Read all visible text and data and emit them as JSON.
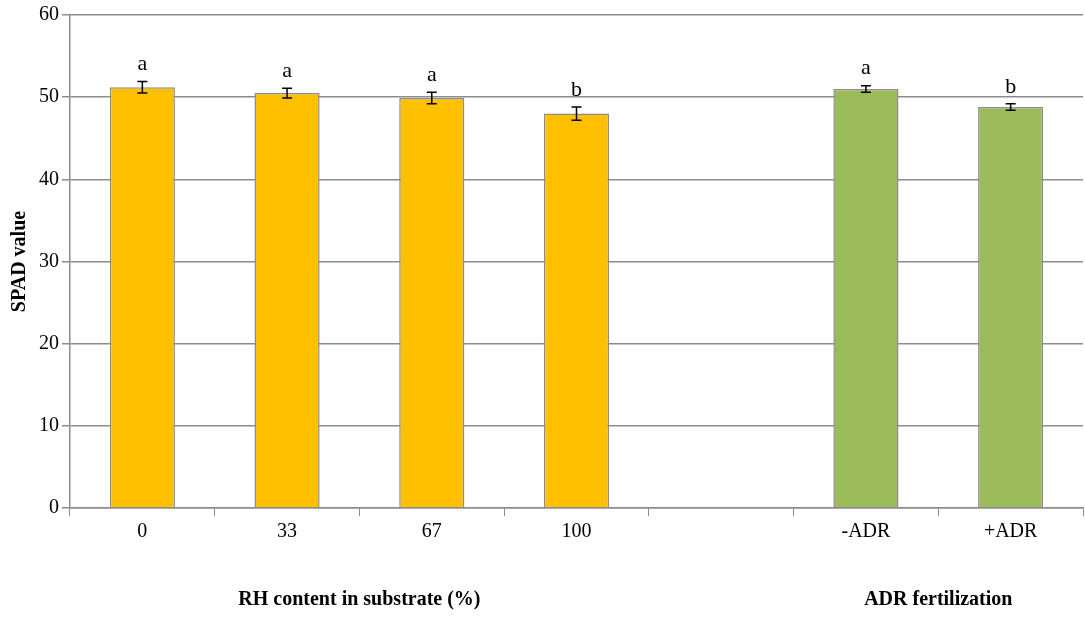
{
  "chart_data": {
    "type": "bar",
    "ylabel": "SPAD value",
    "xlabel": "RH content in substrate (%)",
    "annotations": [
      "ADR fertilization"
    ],
    "categories": [
      "0",
      "33",
      "67",
      "100",
      null,
      "-ADR",
      "+ADR"
    ],
    "values": [
      51.2,
      50.5,
      49.9,
      48.0,
      null,
      51.0,
      48.8
    ],
    "errors": [
      0.7,
      0.6,
      0.7,
      0.8,
      null,
      0.4,
      0.4
    ],
    "colors": [
      "#ffc000",
      "#ffc000",
      "#ffc000",
      "#ffc000",
      "#ffc000",
      "#9bbb59",
      "#9bbb59"
    ],
    "value_labels": [
      "a",
      "a",
      "a",
      "b",
      null,
      "a",
      "b"
    ],
    "ylim": [
      0,
      60
    ],
    "yticks": [
      0,
      10,
      20,
      30,
      40,
      50,
      60
    ],
    "grid": "y",
    "legend": false
  }
}
